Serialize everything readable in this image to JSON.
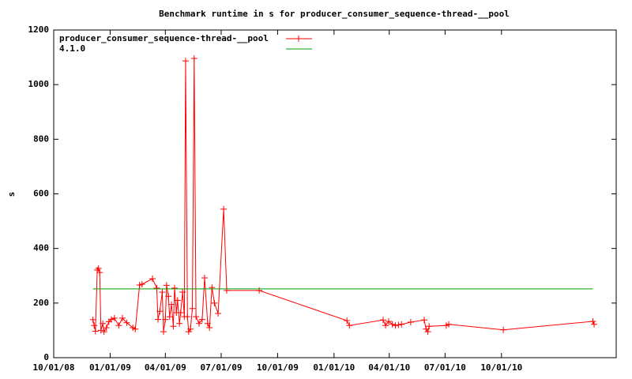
{
  "chart_data": {
    "type": "line",
    "title": "Benchmark runtime in s for producer_consumer_sequence-thread-__pool",
    "y_label": "s",
    "xlim": [
      "2008-10-01",
      "2011-04-06"
    ],
    "xticks": [
      {
        "value": "2008-10-01",
        "label": "10/01/08"
      },
      {
        "value": "2009-01-01",
        "label": "01/01/09"
      },
      {
        "value": "2009-04-01",
        "label": "04/01/09"
      },
      {
        "value": "2009-07-01",
        "label": "07/01/09"
      },
      {
        "value": "2009-10-01",
        "label": "10/01/09"
      },
      {
        "value": "2010-01-01",
        "label": "01/01/10"
      },
      {
        "value": "2010-04-01",
        "label": "04/01/10"
      },
      {
        "value": "2010-07-01",
        "label": "07/01/10"
      },
      {
        "value": "2010-10-01",
        "label": "10/01/10"
      }
    ],
    "ylim": [
      0,
      1200
    ],
    "yticks": [
      0,
      200,
      400,
      600,
      800,
      1000,
      1200
    ],
    "legend": "top-left",
    "series": [
      {
        "name": "producer_consumer_sequence-thread-__pool",
        "color": "#ff0000",
        "markers": true,
        "x": [
          "2008-12-04",
          "2008-12-06",
          "2008-12-08",
          "2008-12-11",
          "2008-12-13",
          "2008-12-15",
          "2008-12-17",
          "2008-12-20",
          "2008-12-22",
          "2008-12-26",
          "2008-12-30",
          "2009-01-03",
          "2009-01-08",
          "2009-01-15",
          "2009-01-21",
          "2009-01-28",
          "2009-02-07",
          "2009-02-11",
          "2009-02-18",
          "2009-02-22",
          "2009-03-11",
          "2009-03-18",
          "2009-03-20",
          "2009-03-23",
          "2009-03-27",
          "2009-03-29",
          "2009-04-01",
          "2009-04-03",
          "2009-04-06",
          "2009-04-08",
          "2009-04-11",
          "2009-04-14",
          "2009-04-16",
          "2009-04-19",
          "2009-04-21",
          "2009-04-24",
          "2009-04-26",
          "2009-04-29",
          "2009-05-02",
          "2009-05-04",
          "2009-05-07",
          "2009-05-09",
          "2009-05-12",
          "2009-05-15",
          "2009-05-18",
          "2009-05-21",
          "2009-05-26",
          "2009-05-31",
          "2009-06-04",
          "2009-06-09",
          "2009-06-12",
          "2009-06-16",
          "2009-06-20",
          "2009-06-26",
          "2009-07-05",
          "2009-07-10",
          "2009-09-01",
          "2010-01-22",
          "2010-01-26",
          "2010-03-22",
          "2010-03-26",
          "2010-03-31",
          "2010-04-06",
          "2010-04-11",
          "2010-04-16",
          "2010-04-21",
          "2010-05-06",
          "2010-05-28",
          "2010-05-31",
          "2010-06-03",
          "2010-06-05",
          "2010-07-03",
          "2010-07-07",
          "2010-10-04",
          "2011-02-27",
          "2011-03-01"
        ],
        "values": [
          139,
          118,
          97,
          321,
          327,
          312,
          100,
          125,
          95,
          110,
          132,
          140,
          145,
          118,
          145,
          128,
          110,
          105,
          266,
          269,
          289,
          255,
          140,
          170,
          240,
          95,
          140,
          265,
          225,
          150,
          195,
          115,
          255,
          165,
          210,
          125,
          165,
          240,
          150,
          1087,
          150,
          95,
          105,
          180,
          1096,
          150,
          125,
          140,
          292,
          125,
          110,
          257,
          200,
          162,
          544,
          246,
          246,
          136,
          118,
          138,
          118,
          133,
          122,
          118,
          120,
          122,
          130,
          138,
          105,
          95,
          115,
          118,
          122,
          102,
          133,
          122
        ]
      },
      {
        "name": "4.1.0",
        "color": "#00a000",
        "markers": false,
        "x": [
          "2008-12-04",
          "2011-02-27"
        ],
        "values": [
          252,
          252
        ]
      }
    ]
  }
}
